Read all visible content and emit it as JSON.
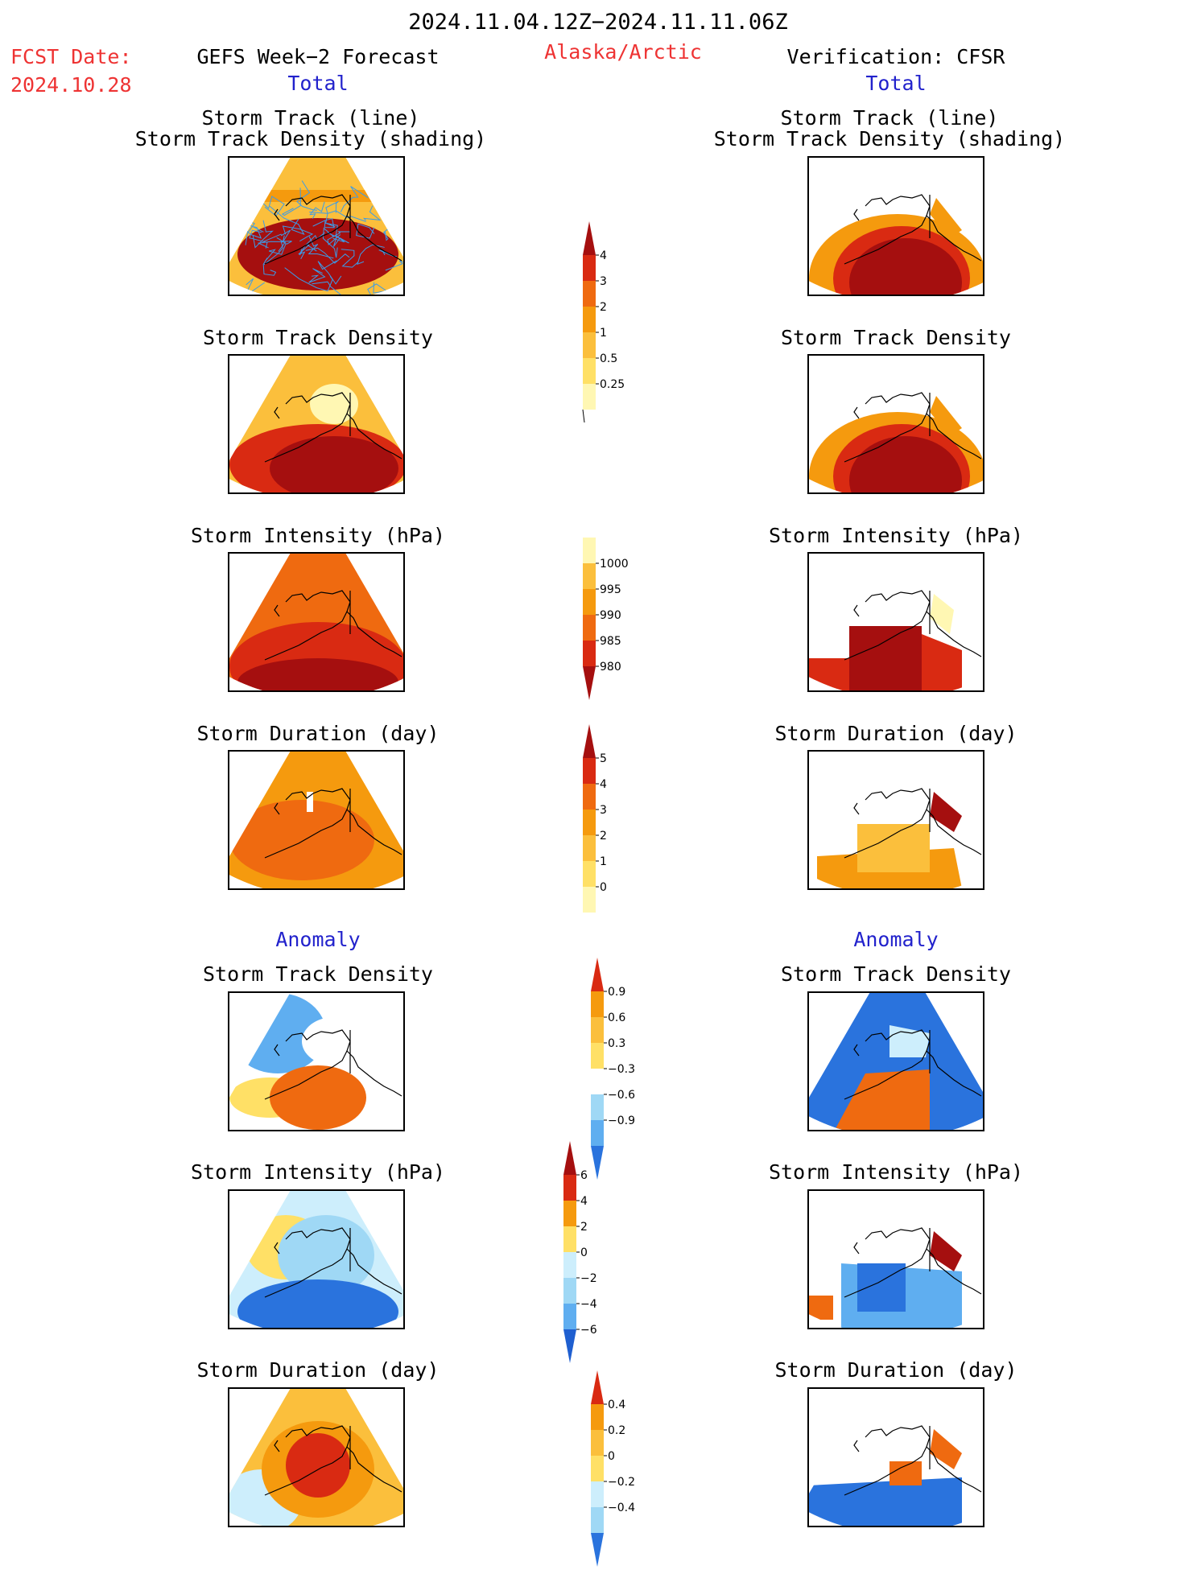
{
  "header": {
    "period": "2024.11.04.12Z−2024.11.11.06Z",
    "fcst_label": "FCST Date:",
    "fcst_date": "2024.10.28",
    "forecast_title": "GEFS Week−2 Forecast",
    "region": "Alaska/Arctic",
    "verification": "Verification: CFSR"
  },
  "sections": {
    "total": "Total",
    "anomaly": "Anomaly"
  },
  "panel_titles": {
    "track_line": "Storm Track (line)",
    "track_density_shading": "Storm Track Density (shading)",
    "density": "Storm Track Density",
    "intensity": "Storm Intensity (hPa)",
    "duration": "Storm Duration (day)"
  },
  "colors": {
    "c1": "#fff7b3",
    "c2": "#ffe066",
    "c3": "#fbbf3c",
    "c4": "#f59a0e",
    "c5": "#ef6a10",
    "c6": "#d92a12",
    "c7": "#a50f0f",
    "b1": "#cdeefc",
    "b2": "#9fd8f5",
    "b3": "#5faef0",
    "b4": "#2a73dd",
    "b5": "#1f5fd0",
    "track_line": "#3b9be8"
  },
  "chart_data": [
    {
      "type": "heatmap",
      "name": "GEFS total storm track density",
      "colorbar": [
        "0.25",
        "0.5",
        "1",
        "2",
        "3",
        "4"
      ]
    },
    {
      "type": "heatmap",
      "name": "GEFS total storm intensity (hPa)",
      "colorbar": [
        "1000",
        "995",
        "990",
        "985",
        "980"
      ]
    },
    {
      "type": "heatmap",
      "name": "GEFS total storm duration (day)",
      "colorbar": [
        "0",
        "1",
        "2",
        "3",
        "4",
        "5"
      ]
    },
    {
      "type": "heatmap",
      "name": "Storm track density anomaly",
      "colorbar": [
        "0.9",
        "0.6",
        "0.3",
        "−0.3",
        "−0.6",
        "−0.9"
      ]
    },
    {
      "type": "heatmap",
      "name": "Storm intensity anomaly (hPa)",
      "colorbar": [
        "6",
        "4",
        "2",
        "0",
        "−2",
        "−4",
        "−6"
      ]
    },
    {
      "type": "heatmap",
      "name": "Storm duration anomaly (day)",
      "colorbar": [
        "0.4",
        "0.2",
        "0",
        "−0.2",
        "−0.4"
      ]
    }
  ]
}
